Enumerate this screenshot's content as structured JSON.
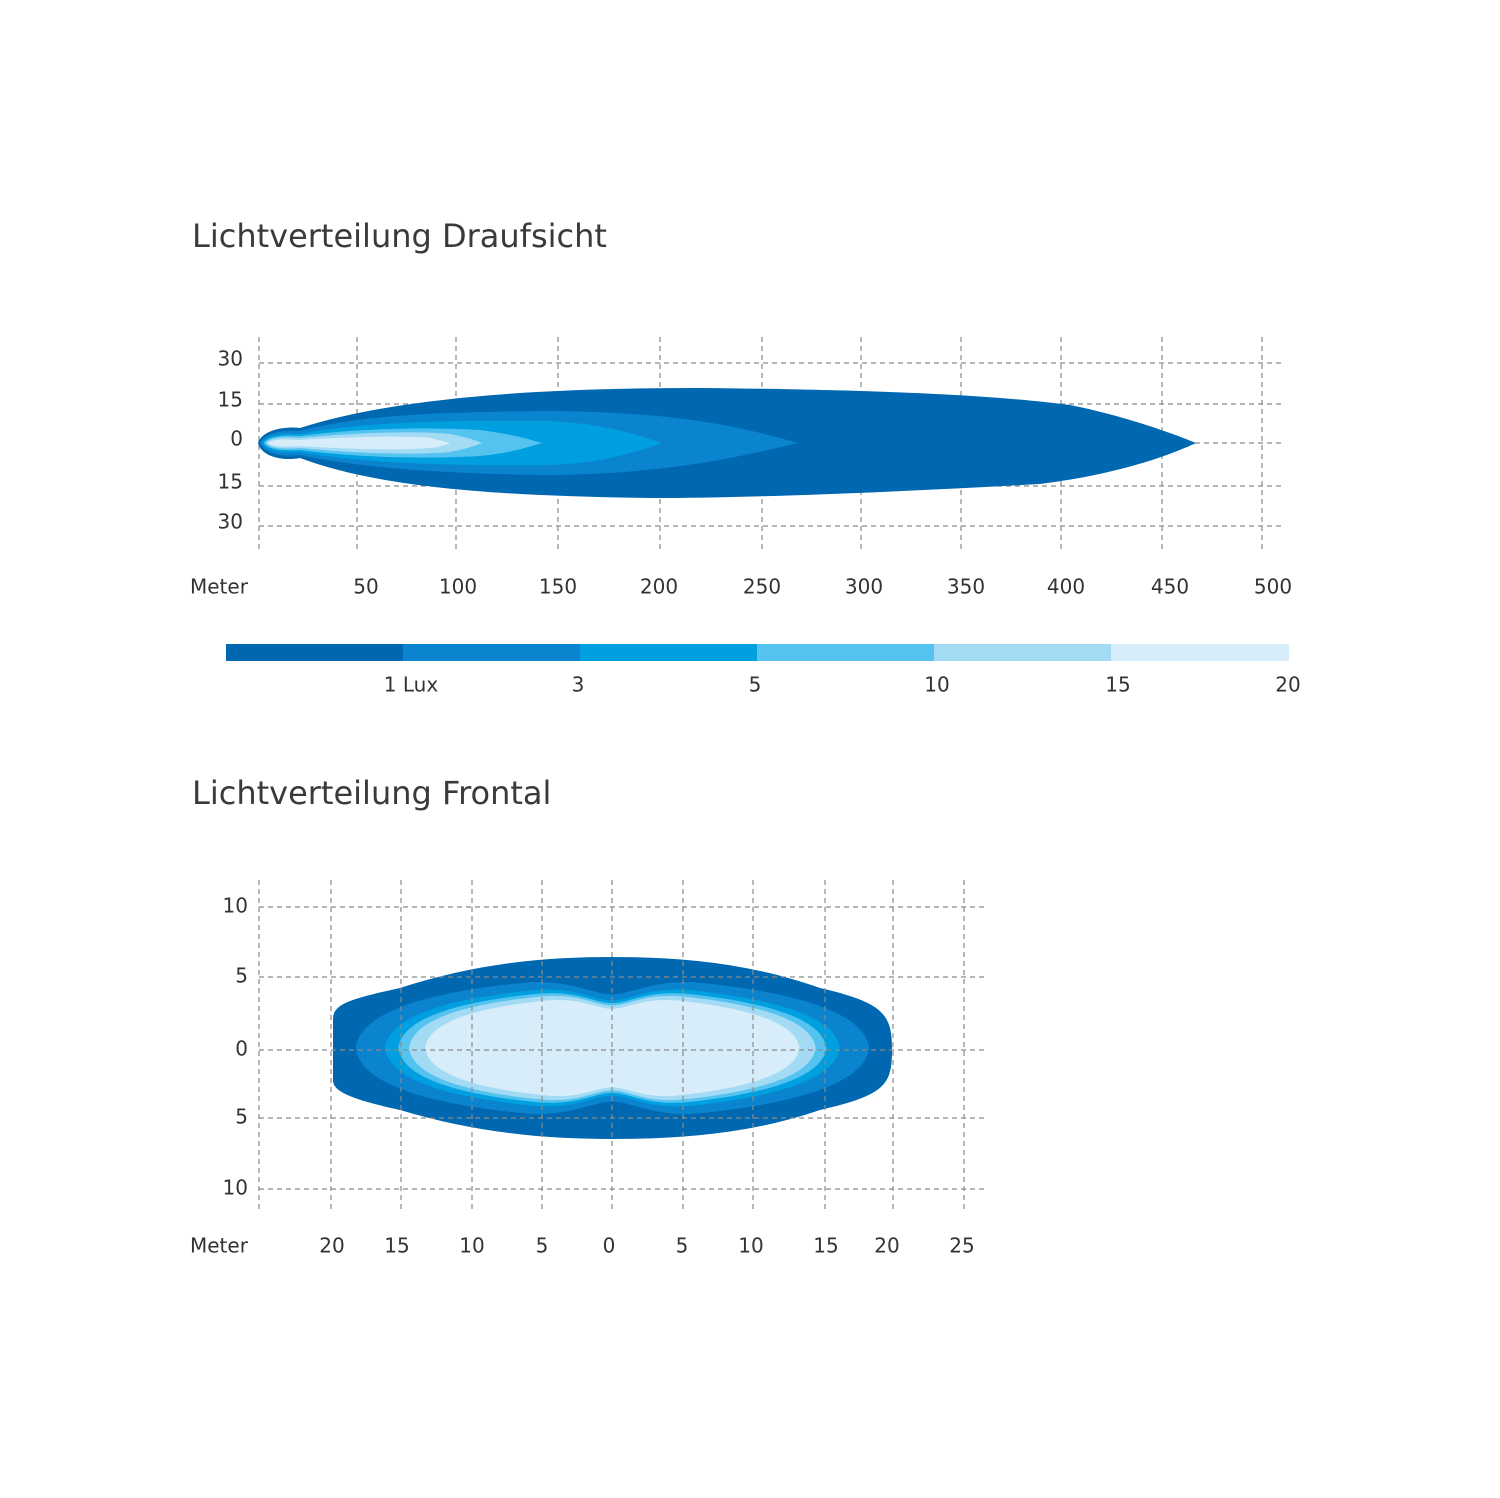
{
  "top": {
    "title": "Lichtverteilung Draufsicht",
    "y_labels": [
      "30",
      "15",
      "0",
      "15",
      "30"
    ],
    "x_axis_label": "Meter",
    "x_labels": [
      "50",
      "100",
      "150",
      "200",
      "250",
      "300",
      "350",
      "400",
      "450",
      "500"
    ]
  },
  "legend": {
    "labels": [
      "1 Lux",
      "3",
      "5",
      "10",
      "15",
      "20"
    ]
  },
  "bottom": {
    "title": "Lichtverteilung Frontal",
    "y_labels": [
      "10",
      "5",
      "0",
      "5",
      "10"
    ],
    "x_axis_label": "Meter",
    "x_labels": [
      "20",
      "15",
      "10",
      "5",
      "0",
      "5",
      "10",
      "15",
      "20",
      "25"
    ]
  }
}
